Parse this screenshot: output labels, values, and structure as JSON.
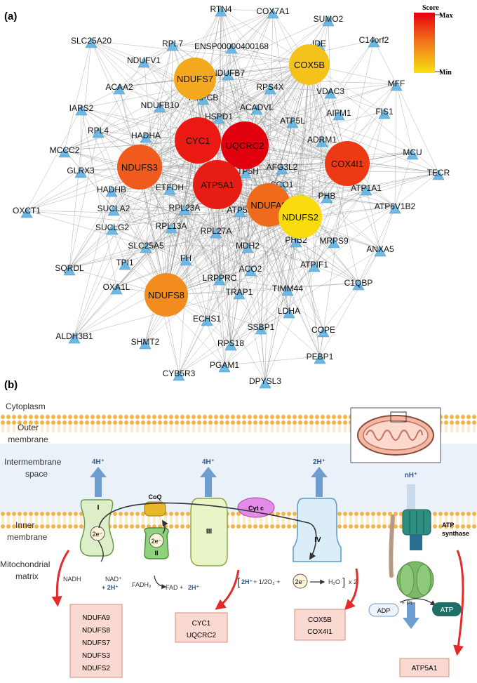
{
  "panel_a": {
    "label": "(a)",
    "legend": {
      "title": "Score",
      "max": "Max",
      "min": "Min"
    },
    "hubs": [
      {
        "id": "UQCRC2",
        "color": "#e0000e"
      },
      {
        "id": "CYC1",
        "color": "#ea1a12"
      },
      {
        "id": "ATP5A1",
        "color": "#e61d14"
      },
      {
        "id": "COX4I1",
        "color": "#eb3a14"
      },
      {
        "id": "NDUFS3",
        "color": "#f05a1c"
      },
      {
        "id": "NDUFA9",
        "color": "#f06a1c"
      },
      {
        "id": "NDUFS8",
        "color": "#f28c1e"
      },
      {
        "id": "NDUFS7",
        "color": "#f4a81e"
      },
      {
        "id": "COX5B",
        "color": "#f5c21a"
      },
      {
        "id": "NDUFS2",
        "color": "#f8dc10"
      }
    ],
    "nodes": [
      "RTN4",
      "COX7A1",
      "SUMO2",
      "RPL7",
      "C14orf2",
      "SLC25A20",
      "ENSP00000400168",
      "IDE",
      "NDUFV1",
      "NDUFB7",
      "MFF",
      "ACAA2",
      "PMPCB",
      "RPS4X",
      "VDAC3",
      "IARS2",
      "NDUFB10",
      "ACADVL",
      "AIFM1",
      "FIS1",
      "HSPD1",
      "RPL4",
      "HADHA",
      "ATP5L",
      "ADRM1",
      "MCCC2",
      "AFG3L2",
      "MCU",
      "GLRX3",
      "ATP5H",
      "TECR",
      "HADHB",
      "ETFDH",
      "SCO1",
      "ATP1A1",
      "OXCT1",
      "SUCLA2",
      "RPL23A",
      "PHB",
      "ATP6V1B2",
      "SUCLG2",
      "RPL13A",
      "ATP5B",
      "RPL27A",
      "SLC25A5",
      "PHB2",
      "MRPS9",
      "ANXA5",
      "MDH2",
      "SQRDL",
      "TPI1",
      "FH",
      "ATPIF1",
      "LRPPRC",
      "ACO2",
      "C1QBP",
      "OXA1L",
      "TRAP1",
      "TIMM44",
      "LDHA",
      "ECHS1",
      "ALDH3B1",
      "SSBP1",
      "COPE",
      "SHMT2",
      "RPS18",
      "PEBP1",
      "PGAM1",
      "CYB5R3",
      "DPYSL3"
    ]
  },
  "panel_b": {
    "label": "(b)",
    "regions": {
      "cytoplasm": "Cytoplasm",
      "outer_membrane": "Outer membrane",
      "intermembrane": "Intermembrane space",
      "inner_membrane": "Inner membrane",
      "matrix": "Mitochondrial matrix"
    },
    "complexes": {
      "c1": "I",
      "c2": "II",
      "c3": "III",
      "c4": "IV",
      "coq": "CoQ",
      "cytc": "Cyt c",
      "atp_synthase": "ATP synthase"
    },
    "protons": {
      "c1": "4H⁺",
      "c3": "4H⁺",
      "c4": "2H⁺",
      "atp": "nH⁺"
    },
    "electron": "2e⁻",
    "reactions": {
      "nadh": "NADH",
      "nad": "NAD⁺",
      "nad_h": "+ 2H⁺",
      "fadh2": "FADH₂",
      "fad": "FAD + ",
      "fad_h": "2H⁺",
      "water_h": "2H⁺",
      "water_mid": " + 1/2O₂ + ",
      "water_out": "H₂O",
      "water_mult": "x 2",
      "adp": "ADP",
      "pi": "+ Pi",
      "atp": "ATP"
    },
    "gene_boxes": {
      "complex1": [
        "NDUFA9",
        "NDUFS8",
        "NDUFS7",
        "NDUFS3",
        "NDUFS2"
      ],
      "complex3": [
        "CYC1",
        "UQCRC2"
      ],
      "complex4": [
        "COX5B",
        "COX4I1"
      ],
      "atp_synthase": [
        "ATP5A1"
      ]
    }
  }
}
